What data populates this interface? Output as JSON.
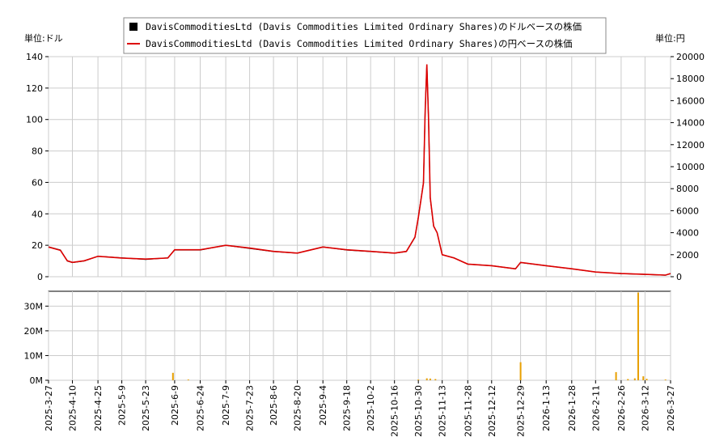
{
  "legend": {
    "usd_label": "DavisCommoditiesLtd (Davis Commodities Limited Ordinary Shares)のドルベースの株価",
    "jpy_label": "DavisCommoditiesLtd (Davis Commodities Limited Ordinary Shares)の円ベースの株価"
  },
  "chart_data": {
    "type": "line",
    "left_axis_unit": "単位:ドル",
    "right_axis_unit": "単位:円",
    "x_ticks": [
      "2025-3-27",
      "2025-4-10",
      "2025-4-25",
      "2025-5-9",
      "2025-5-23",
      "2025-6-9",
      "2025-6-24",
      "2025-7-9",
      "2025-7-23",
      "2025-8-6",
      "2025-8-20",
      "2025-9-4",
      "2025-9-18",
      "2025-10-2",
      "2025-10-16",
      "2025-10-30",
      "2025-11-13",
      "2025-11-28",
      "2025-12-12",
      "2025-12-29",
      "2026-1-13",
      "2026-1-28",
      "2026-2-11",
      "2026-2-26",
      "2026-3-12",
      "2026-3-27"
    ],
    "price_axis_left": {
      "ticks": [
        0,
        20,
        40,
        60,
        80,
        100,
        120,
        140
      ],
      "ylim": [
        0,
        140
      ]
    },
    "price_axis_right": {
      "ticks": [
        0,
        2000,
        4000,
        6000,
        8000,
        10000,
        12000,
        14000,
        16000,
        18000,
        20000
      ],
      "ylim": [
        0,
        20000
      ]
    },
    "volume_axis": {
      "tick_labels": [
        "0M",
        "10M",
        "20M",
        "30M"
      ],
      "ticks": [
        0,
        10,
        20,
        30
      ],
      "ylim": [
        0,
        36
      ]
    },
    "series": [
      {
        "name": "DavisCommoditiesLtd (Davis Commodities Limited Ordinary Shares)のドルベースの株価",
        "color": "#000000",
        "x": [
          "2025-3-27",
          "2025-4-3",
          "2025-4-7",
          "2025-4-10",
          "2025-4-17",
          "2025-4-25",
          "2025-5-9",
          "2025-5-23",
          "2025-6-5",
          "2025-6-9",
          "2025-6-15",
          "2025-6-24",
          "2025-7-9",
          "2025-7-23",
          "2025-8-6",
          "2025-8-20",
          "2025-9-4",
          "2025-9-18",
          "2025-10-2",
          "2025-10-16",
          "2025-10-23",
          "2025-10-28",
          "2025-10-30",
          "2025-11-2",
          "2025-11-3",
          "2025-11-4",
          "2025-11-5",
          "2025-11-6",
          "2025-11-8",
          "2025-11-10",
          "2025-11-13",
          "2025-11-20",
          "2025-11-28",
          "2025-12-12",
          "2025-12-26",
          "2025-12-29",
          "2026-1-13",
          "2026-1-28",
          "2026-2-11",
          "2026-2-26",
          "2026-3-12",
          "2026-3-24",
          "2026-3-27"
        ],
        "y": [
          19,
          17,
          10,
          9,
          10,
          13,
          12,
          11,
          12,
          17,
          17,
          17,
          20,
          18,
          16,
          15,
          19,
          17,
          16,
          15,
          16,
          25,
          38,
          60,
          105,
          135,
          100,
          50,
          32,
          28,
          14,
          12,
          8,
          7,
          5,
          9,
          7,
          5,
          3,
          2,
          1.5,
          1,
          2
        ]
      },
      {
        "name": "DavisCommoditiesLtd (Davis Commodities Limited Ordinary Shares)の円ベースの株価",
        "color": "#dd0000",
        "x": [
          "2025-3-27",
          "2025-4-3",
          "2025-4-7",
          "2025-4-10",
          "2025-4-17",
          "2025-4-25",
          "2025-5-9",
          "2025-5-23",
          "2025-6-5",
          "2025-6-9",
          "2025-6-15",
          "2025-6-24",
          "2025-7-9",
          "2025-7-23",
          "2025-8-6",
          "2025-8-20",
          "2025-9-4",
          "2025-9-18",
          "2025-10-2",
          "2025-10-16",
          "2025-10-23",
          "2025-10-28",
          "2025-10-30",
          "2025-11-2",
          "2025-11-3",
          "2025-11-4",
          "2025-11-5",
          "2025-11-6",
          "2025-11-8",
          "2025-11-10",
          "2025-11-13",
          "2025-11-20",
          "2025-11-28",
          "2025-12-12",
          "2025-12-26",
          "2025-12-29",
          "2026-1-13",
          "2026-1-28",
          "2026-2-11",
          "2026-2-26",
          "2026-3-12",
          "2026-3-24",
          "2026-3-27"
        ],
        "y": [
          2700,
          2400,
          1450,
          1300,
          1450,
          1850,
          1700,
          1600,
          1700,
          2450,
          2450,
          2450,
          2850,
          2600,
          2300,
          2150,
          2700,
          2450,
          2300,
          2150,
          2300,
          3600,
          5400,
          8500,
          15000,
          19300,
          14300,
          7200,
          4600,
          4000,
          2000,
          1700,
          1150,
          1000,
          720,
          1300,
          1000,
          720,
          430,
          290,
          215,
          150,
          290
        ]
      }
    ],
    "volume": {
      "color": "#e8a000",
      "x": [
        "2025-6-8",
        "2025-6-17",
        "2025-10-30",
        "2025-11-4",
        "2025-11-6",
        "2025-11-9",
        "2025-12-29",
        "2026-2-23",
        "2026-3-2",
        "2026-3-6",
        "2026-3-8",
        "2026-3-11",
        "2026-3-13",
        "2026-3-24"
      ],
      "values": [
        3,
        0.3,
        0.3,
        0.8,
        0.7,
        0.5,
        7.3,
        3.3,
        0.5,
        0.8,
        35.5,
        1.6,
        0.6,
        0.3
      ]
    }
  }
}
